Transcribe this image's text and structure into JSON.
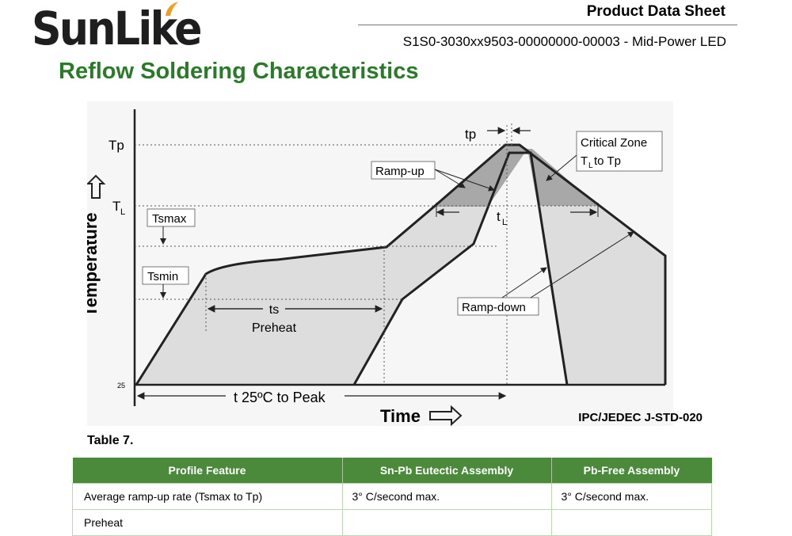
{
  "header": {
    "logo_text": "SunLike",
    "doc_title": "Product Data Sheet",
    "doc_subtitle": "S1S0-3030xx9503-00000000-00003 - Mid-Power LED"
  },
  "section_title": "Reflow Soldering Characteristics",
  "figure": {
    "y_axis_label": "Temperature",
    "x_axis_label": "Time",
    "labels": {
      "tp_upper": "tp",
      "tp_axis": "Tp",
      "tl_axis": "T",
      "tl_sub": "L",
      "tsmax": "Tsmax",
      "tsmin": "Tsmin",
      "ramp_up": "Ramp-up",
      "ramp_down": "Ramp-down",
      "critical_zone_l1": "Critical Zone",
      "critical_zone_l2_a": "T",
      "critical_zone_l2_sub": "L",
      "critical_zone_l2_b": " to Tp",
      "tl_interval": "t",
      "tl_interval_sub": "L",
      "ts": "ts",
      "preheat": "Preheat",
      "y_tick_25": "25",
      "t_25_to_peak": "t  25ºC to Peak"
    },
    "shade_color": "#dddddd",
    "critical_shade_color": "#a8a8a8"
  },
  "standard_label": "IPC/JEDEC J-STD-020",
  "table": {
    "caption": "Table 7.",
    "header_color": "#4a8a3a",
    "columns": [
      "Profile Feature",
      "Sn-Pb Eutectic Assembly",
      "Pb-Free Assembly"
    ],
    "rows": [
      [
        "Average ramp-up rate (Tsmax to Tp)",
        "3° C/second max.",
        "3° C/second max."
      ],
      [
        "Preheat",
        "",
        ""
      ]
    ]
  }
}
